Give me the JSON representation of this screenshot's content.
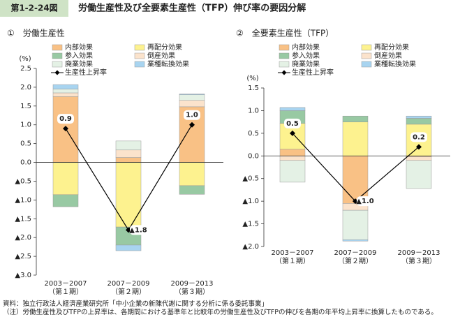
{
  "header": {
    "figure_no": "第1-2-24図",
    "title": "労働生産性及び全要素生産性（TFP）伸び率の要因分解"
  },
  "chart_data": [
    {
      "type": "bar",
      "stacked": true,
      "title": "①　労働生産性",
      "y_unit": "(%)",
      "categories": [
        [
          "2003－2007",
          "（第１期）"
        ],
        [
          "2007－2009",
          "（第２期）"
        ],
        [
          "2009－2013",
          "（第３期）"
        ]
      ],
      "series": [
        {
          "name": "内部効果",
          "color": "#f9c185",
          "values": [
            1.75,
            0.13,
            1.48
          ]
        },
        {
          "name": "再配分効果",
          "color": "#fdf28f",
          "values": [
            -0.86,
            -1.72,
            -0.62
          ]
        },
        {
          "name": "参入効果",
          "color": "#98c9a3",
          "values": [
            -0.32,
            -0.48,
            -0.23
          ]
        },
        {
          "name": "倒産効果",
          "color": "#fbe3cc",
          "values": [
            0.1,
            0.2,
            0.17
          ]
        },
        {
          "name": "廃業効果",
          "color": "#e4f1e5",
          "values": [
            0.1,
            0.24,
            0.15
          ]
        },
        {
          "name": "業種転換効果",
          "color": "#a8d4f0",
          "values": [
            0.12,
            -0.15,
            0.02
          ]
        }
      ],
      "line": {
        "name": "生産性上昇率",
        "color": "#000000",
        "values": [
          0.9,
          -1.8,
          1.0
        ],
        "value_labels": [
          "0.9",
          "▲1.8",
          "1.0"
        ]
      },
      "ylim": [
        -3.0,
        2.5
      ],
      "yticks": [
        {
          "value": 2.5,
          "label": "2.5"
        },
        {
          "value": 2,
          "label": "2.0"
        },
        {
          "value": 1.5,
          "label": "1.5"
        },
        {
          "value": 1,
          "label": "1.0"
        },
        {
          "value": 0.5,
          "label": "0.5"
        },
        {
          "value": 0,
          "label": "0.0"
        },
        {
          "value": -0.5,
          "label": "▲0.5"
        },
        {
          "value": -1,
          "label": "▲1.0"
        },
        {
          "value": -1.5,
          "label": "▲1.5"
        },
        {
          "value": -2,
          "label": "▲2.0"
        },
        {
          "value": -2.5,
          "label": "▲2.5"
        },
        {
          "value": -3,
          "label": "▲3.0"
        }
      ]
    },
    {
      "type": "bar",
      "stacked": true,
      "title": "②　全要素生産性（TFP）",
      "y_unit": "(%)",
      "categories": [
        [
          "2003－2007",
          "（第１期）"
        ],
        [
          "2007－2009",
          "（第２期）"
        ],
        [
          "2009－2013",
          "（第３期）"
        ]
      ],
      "series": [
        {
          "name": "内部効果",
          "color": "#f9c185",
          "values": [
            0.15,
            -1.05,
            -0.02
          ]
        },
        {
          "name": "再配分効果",
          "color": "#fdf28f",
          "values": [
            0.57,
            0.75,
            0.7
          ]
        },
        {
          "name": "参入効果",
          "color": "#98c9a3",
          "values": [
            0.28,
            0.13,
            0.13
          ]
        },
        {
          "name": "倒産効果",
          "color": "#fbe3cc",
          "values": [
            -0.1,
            -0.15,
            -0.08
          ]
        },
        {
          "name": "廃業効果",
          "color": "#e4f1e5",
          "values": [
            -0.48,
            -0.65,
            -0.62
          ]
        },
        {
          "name": "業種転換効果",
          "color": "#a8d4f0",
          "values": [
            0.07,
            -0.03,
            0.05
          ]
        }
      ],
      "line": {
        "name": "生産性上昇率",
        "color": "#000000",
        "values": [
          0.5,
          -1.0,
          0.2
        ],
        "value_labels": [
          "0.5",
          "▲1.0",
          "0.2"
        ]
      },
      "ylim": [
        -2.0,
        1.5
      ],
      "yticks": [
        {
          "value": 1.5,
          "label": "1.5"
        },
        {
          "value": 1,
          "label": "1.0"
        },
        {
          "value": 0.5,
          "label": "0.5"
        },
        {
          "value": 0,
          "label": "0.0"
        },
        {
          "value": -0.5,
          "label": "▲0.5"
        },
        {
          "value": -1,
          "label": "▲1.0"
        },
        {
          "value": -1.5,
          "label": "▲1.5"
        },
        {
          "value": -2,
          "label": "▲2.0"
        }
      ]
    }
  ],
  "notes": {
    "source": "資料：独立行政法人経済産業研究所「中小企業の新陳代謝に関する分析に係る委託事業」",
    "note": "（注）労働生産性及びTFPの上昇率は、各期間における基準年と比較年の労働生産性及びTFPの伸びを各期の年平均上昇率に換算したものである。"
  }
}
